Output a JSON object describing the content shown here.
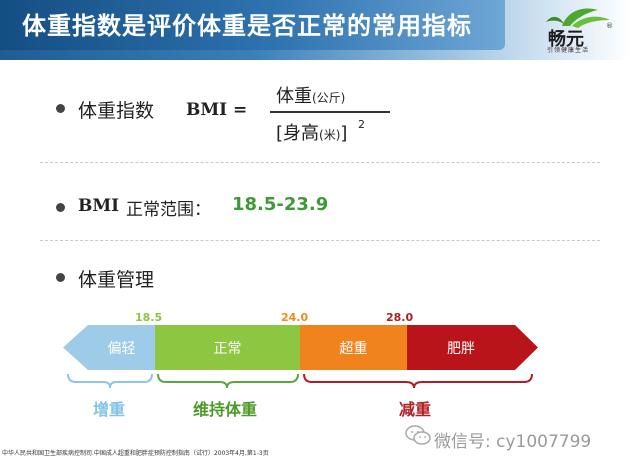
{
  "header": {
    "title": "体重指数是评价体重是否正常的常用指标",
    "logo_name": "畅元",
    "logo_mark": "®",
    "logo_subtitle": "引领健康生活"
  },
  "bmi_formula": {
    "label": "体重指数",
    "bmi_text": "BMI =",
    "numerator_main": "体重",
    "numerator_unit": "(公斤)",
    "denominator_main": "[身高",
    "denominator_unit": "(米)",
    "denominator_close": "]",
    "exponent": "2"
  },
  "normal_range": {
    "bmi_text": "BMI",
    "label": "正常范围：",
    "value": "18.5-23.9"
  },
  "management": {
    "label": "体重管理",
    "thresholds": [
      "18.5",
      "24.0",
      "28.0"
    ],
    "threshold_colors": [
      "#8cc63f",
      "#f08a1c",
      "#b01e23"
    ],
    "segments": [
      "偏轻",
      "正常",
      "超重",
      "肥胖"
    ],
    "segment_colors": [
      "#9dcbe8",
      "#8dc641",
      "#f1831f",
      "#b8141a"
    ],
    "categories": [
      "增重",
      "维持体重",
      "减重"
    ],
    "category_colors": [
      "#82c3e6",
      "#4c9a2a",
      "#b01e23"
    ]
  },
  "footer": {
    "source": "中华人民共和国卫生部疾病控制司.中国成人超重和肥胖症预防控制指南（试行）2003年4月,第1-3页",
    "wechat": "微信号: cy1007799"
  }
}
